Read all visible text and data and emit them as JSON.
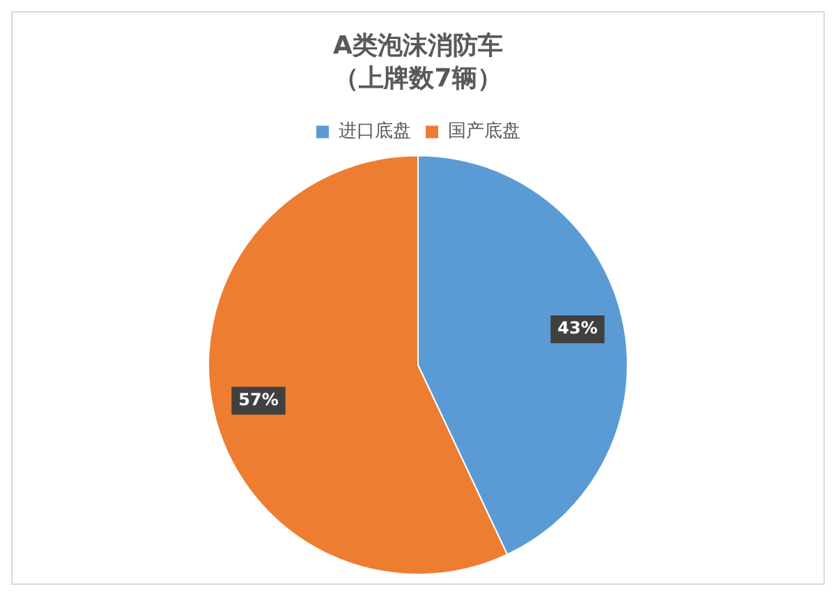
{
  "chart_data": {
    "type": "pie",
    "title": "A类泡沫消防车",
    "subtitle": "（上牌数7辆）",
    "categories": [
      "进口底盘",
      "国产底盘"
    ],
    "values": [
      43,
      57
    ],
    "colors": [
      "#5b9bd5",
      "#ed7d31"
    ],
    "value_labels": [
      "43%",
      "57%"
    ],
    "legend": "top"
  }
}
